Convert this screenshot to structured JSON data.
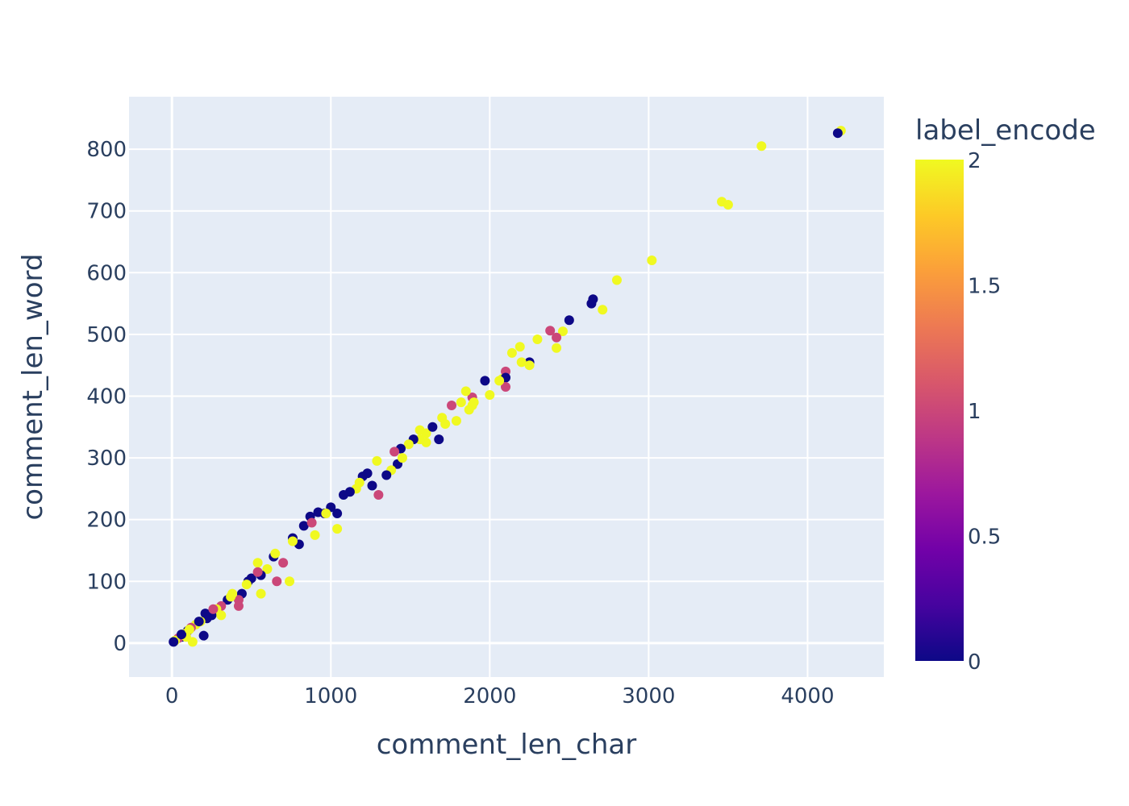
{
  "chart_data": {
    "type": "scatter",
    "xlabel": "comment_len_char",
    "ylabel": "comment_len_word",
    "xlim": [
      -270,
      4480
    ],
    "ylim": [
      -55,
      885
    ],
    "xticks": [
      0,
      1000,
      2000,
      3000,
      4000
    ],
    "yticks": [
      0,
      100,
      200,
      300,
      400,
      500,
      600,
      700,
      800
    ],
    "grid": true,
    "colorbar": {
      "title": "label_encode",
      "range": [
        0,
        2
      ],
      "ticks": [
        0,
        0.5,
        1,
        1.5,
        2
      ],
      "tick_labels": [
        "0",
        "0.5",
        "1",
        "1.5",
        "2"
      ],
      "colorscale": [
        "#0d0887",
        "#46039f",
        "#7201a8",
        "#9c179e",
        "#bd3786",
        "#d8576b",
        "#ed7953",
        "#fb9f3a",
        "#fdca26",
        "#f0f921"
      ]
    },
    "points": [
      [
        4210,
        830,
        2
      ],
      [
        4190,
        826,
        0
      ],
      [
        3710,
        805,
        2
      ],
      [
        3460,
        715,
        2
      ],
      [
        3500,
        710,
        2
      ],
      [
        3020,
        620,
        2
      ],
      [
        2800,
        588,
        2
      ],
      [
        2710,
        540,
        2
      ],
      [
        2640,
        550,
        0
      ],
      [
        2650,
        557,
        0
      ],
      [
        2500,
        523,
        0
      ],
      [
        2460,
        505,
        2
      ],
      [
        2380,
        506,
        1
      ],
      [
        2420,
        495,
        1
      ],
      [
        2300,
        492,
        2
      ],
      [
        2420,
        478,
        2
      ],
      [
        2250,
        455,
        0
      ],
      [
        2250,
        450,
        2
      ],
      [
        2190,
        480,
        2
      ],
      [
        2140,
        470,
        2
      ],
      [
        2200,
        455,
        2
      ],
      [
        2100,
        440,
        1
      ],
      [
        2080,
        428,
        2
      ],
      [
        2100,
        430,
        0
      ],
      [
        2100,
        415,
        1
      ],
      [
        2060,
        425,
        2
      ],
      [
        1970,
        425,
        0
      ],
      [
        2000,
        402,
        2
      ],
      [
        1890,
        398,
        1
      ],
      [
        1850,
        408,
        2
      ],
      [
        1890,
        385,
        2
      ],
      [
        1870,
        378,
        2
      ],
      [
        1760,
        385,
        1
      ],
      [
        1790,
        360,
        2
      ],
      [
        1700,
        365,
        2
      ],
      [
        1680,
        330,
        0
      ],
      [
        1600,
        325,
        2
      ],
      [
        1560,
        330,
        2
      ],
      [
        1520,
        330,
        0
      ],
      [
        1490,
        322,
        2
      ],
      [
        1440,
        315,
        0
      ],
      [
        1420,
        290,
        0
      ],
      [
        1380,
        280,
        2
      ],
      [
        1350,
        272,
        0
      ],
      [
        1300,
        240,
        1
      ],
      [
        1260,
        255,
        0
      ],
      [
        1230,
        275,
        0
      ],
      [
        1200,
        270,
        0
      ],
      [
        1160,
        250,
        2
      ],
      [
        1120,
        245,
        0
      ],
      [
        1080,
        240,
        0
      ],
      [
        1040,
        210,
        0
      ],
      [
        1000,
        220,
        0
      ],
      [
        960,
        210,
        0
      ],
      [
        920,
        212,
        0
      ],
      [
        870,
        205,
        0
      ],
      [
        830,
        190,
        0
      ],
      [
        1040,
        185,
        2
      ],
      [
        900,
        175,
        2
      ],
      [
        800,
        160,
        0
      ],
      [
        760,
        170,
        0
      ],
      [
        740,
        100,
        2
      ],
      [
        700,
        130,
        1
      ],
      [
        660,
        100,
        1
      ],
      [
        640,
        140,
        0
      ],
      [
        600,
        120,
        2
      ],
      [
        560,
        110,
        0
      ],
      [
        540,
        130,
        2
      ],
      [
        500,
        105,
        0
      ],
      [
        480,
        100,
        0
      ],
      [
        440,
        80,
        0
      ],
      [
        420,
        70,
        1
      ],
      [
        380,
        80,
        2
      ],
      [
        350,
        70,
        0
      ],
      [
        310,
        60,
        1
      ],
      [
        280,
        55,
        2
      ],
      [
        250,
        45,
        0
      ],
      [
        220,
        40,
        0
      ],
      [
        210,
        48,
        0
      ],
      [
        200,
        12,
        0
      ],
      [
        180,
        35,
        2
      ],
      [
        150,
        30,
        2
      ],
      [
        120,
        25,
        1
      ],
      [
        100,
        20,
        0
      ],
      [
        80,
        15,
        2
      ],
      [
        60,
        10,
        0
      ],
      [
        40,
        8,
        1
      ],
      [
        20,
        4,
        2
      ],
      [
        10,
        2,
        0
      ],
      [
        130,
        2,
        2
      ],
      [
        90,
        10,
        2
      ],
      [
        60,
        14,
        0
      ],
      [
        310,
        45,
        2
      ],
      [
        420,
        60,
        1
      ],
      [
        560,
        80,
        2
      ],
      [
        1290,
        295,
        2
      ],
      [
        1450,
        300,
        2
      ],
      [
        1600,
        340,
        2
      ],
      [
        1720,
        355,
        2
      ],
      [
        1820,
        390,
        2
      ],
      [
        1400,
        310,
        1
      ],
      [
        1180,
        260,
        2
      ],
      [
        970,
        210,
        2
      ],
      [
        880,
        195,
        1
      ],
      [
        760,
        165,
        2
      ],
      [
        650,
        145,
        2
      ],
      [
        540,
        115,
        1
      ],
      [
        470,
        95,
        2
      ],
      [
        370,
        75,
        2
      ],
      [
        260,
        55,
        1
      ],
      [
        170,
        35,
        0
      ],
      [
        110,
        22,
        2
      ],
      [
        1560,
        345,
        2
      ],
      [
        1640,
        350,
        0
      ],
      [
        1900,
        390,
        2
      ]
    ]
  }
}
